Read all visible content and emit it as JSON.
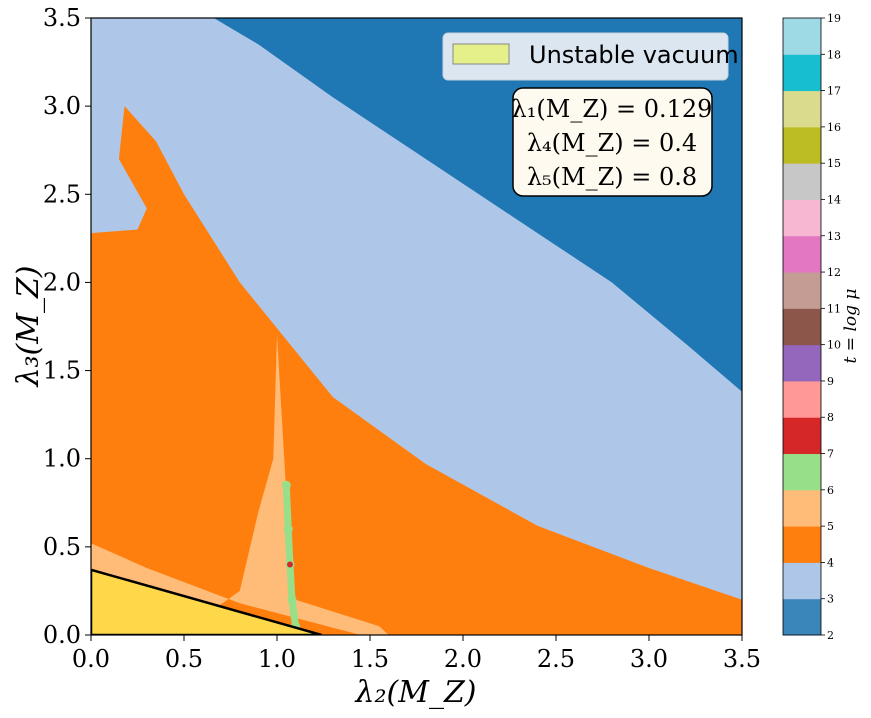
{
  "chart_data": {
    "type": "heatmap",
    "title": "",
    "xlabel": "λ₂(M_Z)",
    "ylabel": "λ₃(M_Z)",
    "xlim": [
      0.0,
      3.5
    ],
    "ylim": [
      0.0,
      3.5
    ],
    "x_ticks": [
      "0.0",
      "0.5",
      "1.0",
      "1.5",
      "2.0",
      "2.5",
      "3.0",
      "3.5"
    ],
    "y_ticks": [
      "0.0",
      "0.5",
      "1.0",
      "1.5",
      "2.0",
      "2.5",
      "3.0",
      "3.5"
    ],
    "colorbar": {
      "label": "t = log μ",
      "ticks": [
        "2",
        "3",
        "4",
        "5",
        "6",
        "7",
        "8",
        "9",
        "10",
        "11",
        "12",
        "13",
        "14",
        "15",
        "16",
        "17",
        "18",
        "19"
      ],
      "colors": [
        "#3a86bb",
        "#aec7e8",
        "#ff7f0e",
        "#ffbb78",
        "#98df8a",
        "#d62728",
        "#ff9896",
        "#9467bd",
        "#8c564b",
        "#c49c94",
        "#e377c2",
        "#f7b6d2",
        "#c7c7c7",
        "#bcbd22",
        "#dbdb8d",
        "#17becf",
        "#9edae5"
      ]
    },
    "regions": [
      {
        "level": 3,
        "color": "#1f77b4",
        "boundary": [
          [
            0.66,
            3.5
          ],
          [
            0.9,
            3.35
          ],
          [
            1.3,
            3.05
          ],
          [
            1.8,
            2.7
          ],
          [
            2.3,
            2.35
          ],
          [
            2.8,
            2.0
          ],
          [
            3.2,
            1.65
          ],
          [
            3.5,
            1.38
          ]
        ]
      },
      {
        "level": 4,
        "color": "#aec7e8",
        "boundary": [
          [
            0.0,
            2.28
          ],
          [
            0.25,
            2.3
          ],
          [
            0.3,
            2.42
          ],
          [
            0.15,
            2.7
          ],
          [
            0.18,
            3.0
          ],
          [
            0.35,
            2.8
          ],
          [
            0.5,
            2.5
          ],
          [
            0.8,
            2.0
          ],
          [
            1.3,
            1.35
          ],
          [
            1.8,
            0.97
          ],
          [
            2.4,
            0.62
          ],
          [
            3.0,
            0.38
          ],
          [
            3.5,
            0.2
          ]
        ]
      },
      {
        "level": 5,
        "color": "#ff7f0e",
        "boundary": [
          [
            0.0,
            0.52
          ],
          [
            0.3,
            0.38
          ],
          [
            0.8,
            0.18
          ],
          [
            1.45,
            0.0
          ],
          [
            1.6,
            0.0
          ],
          [
            1.55,
            0.05
          ],
          [
            1.1,
            0.2
          ],
          [
            1.05,
            0.8
          ],
          [
            1.0,
            1.7
          ],
          [
            0.98,
            1.0
          ],
          [
            0.9,
            0.7
          ],
          [
            0.8,
            0.25
          ],
          [
            0.6,
            0.1
          ]
        ]
      },
      {
        "level": 6,
        "color": "#ffbb78"
      },
      {
        "level": 7,
        "color": "#98df8a",
        "points": [
          [
            1.05,
            0.85
          ],
          [
            1.06,
            0.6
          ],
          [
            1.07,
            0.4
          ],
          [
            1.08,
            0.2
          ],
          [
            1.1,
            0.05
          ]
        ]
      },
      {
        "level": 8,
        "color": "#d62728",
        "points": [
          [
            1.07,
            0.4
          ]
        ]
      }
    ],
    "unstable_region": {
      "vertices": [
        [
          0.0,
          0.0
        ],
        [
          0.0,
          0.37
        ],
        [
          1.24,
          0.0
        ]
      ],
      "color": "#ffd84a"
    },
    "legend": [
      {
        "label": "Unstable vacuum",
        "color": "#e5f08a"
      }
    ],
    "legend_position": "top-right",
    "annotation": [
      "λ₁(M_Z) = 0.129",
      "λ₄(M_Z) = 0.4",
      "λ₅(M_Z) = 0.8"
    ]
  }
}
